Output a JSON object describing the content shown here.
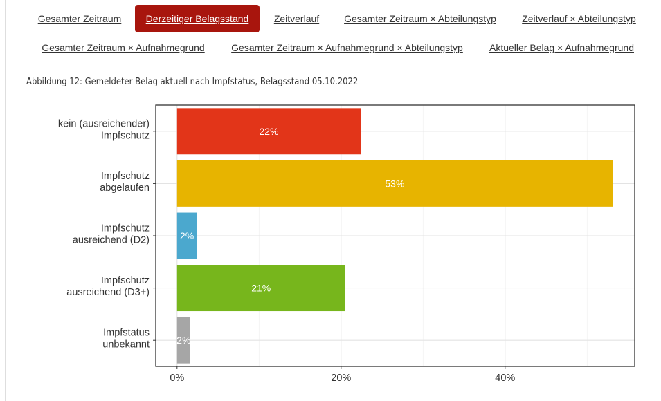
{
  "nav": {
    "row1": [
      {
        "label": "Gesamter Zeitraum",
        "active": false
      },
      {
        "label": "Derzeitiger Belagsstand",
        "active": true
      },
      {
        "label": "Zeitverlauf",
        "active": false
      },
      {
        "label": "Gesamter Zeitraum × Abteilungstyp",
        "active": false
      },
      {
        "label": "Zeitverlauf × Abteilungstyp",
        "active": false
      }
    ],
    "row2": [
      {
        "label": "Gesamter Zeitraum × Aufnahmegrund",
        "active": false
      },
      {
        "label": "Gesamter Zeitraum × Aufnahmegrund × Abteilungstyp",
        "active": false
      },
      {
        "label": "Aktueller Belag × Aufnahmegrund",
        "active": false
      }
    ]
  },
  "figure": {
    "title": "Abbildung 12: Gemeldeter Belag aktuell nach Impfstatus, Belagsstand 05.10.2022"
  },
  "chart_data": {
    "type": "bar",
    "orientation": "horizontal",
    "title": "Abbildung 12: Gemeldeter Belag aktuell nach Impfstatus, Belagsstand 05.10.2022",
    "xlabel": "",
    "ylabel": "",
    "categories": [
      [
        "kein (ausreichender)",
        "Impfschutz"
      ],
      [
        "Impfschutz",
        "abgelaufen"
      ],
      [
        "Impfschutz",
        "ausreichend (D2)"
      ],
      [
        "Impfschutz",
        "ausreichend (D3+)"
      ],
      [
        "Impfstatus",
        "unbekannt"
      ]
    ],
    "values": [
      22.4,
      53.1,
      2.4,
      20.5,
      1.6
    ],
    "value_labels": [
      "22%",
      "53%",
      "2%",
      "21%",
      "2%"
    ],
    "colors": [
      "#e23519",
      "#e7b400",
      "#4ba8ce",
      "#77b61c",
      "#a6a6a6"
    ],
    "label_color": "#ffffff",
    "xlim": [
      -2.6,
      55.8
    ],
    "x_ticks": [
      0,
      20,
      40
    ],
    "x_tick_labels": [
      "0%",
      "20%",
      "40%"
    ],
    "grid": true,
    "legend": "none"
  }
}
